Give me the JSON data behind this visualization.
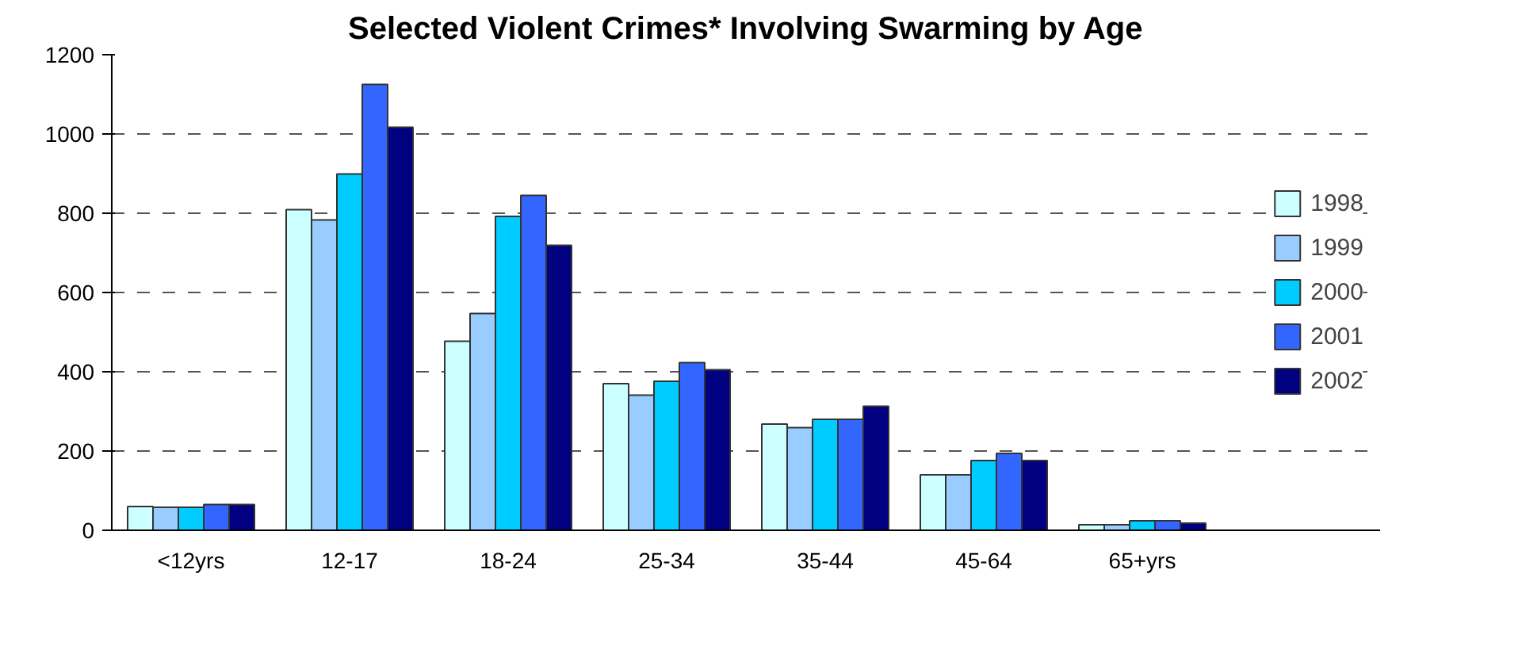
{
  "chart_data": {
    "type": "bar",
    "title": "Selected Violent Crimes* Involving Swarming by Age",
    "categories": [
      "<12yrs",
      "12-17",
      "18-24",
      "25-34",
      "35-44",
      "45-64",
      "65+yrs"
    ],
    "series": [
      {
        "name": "1998",
        "color": "#ccffff",
        "values": [
          60,
          809,
          477,
          370,
          268,
          140,
          14
        ]
      },
      {
        "name": "1999",
        "color": "#99ccff",
        "values": [
          58,
          783,
          547,
          341,
          259,
          140,
          14
        ]
      },
      {
        "name": "2000",
        "color": "#00ccff",
        "values": [
          58,
          899,
          792,
          376,
          280,
          176,
          24
        ]
      },
      {
        "name": "2001",
        "color": "#3366ff",
        "values": [
          65,
          1125,
          845,
          423,
          280,
          194,
          24
        ]
      },
      {
        "name": "2002",
        "color": "#000080",
        "values": [
          65,
          1017,
          719,
          405,
          313,
          176,
          18
        ]
      }
    ],
    "ylim": [
      0,
      1200
    ],
    "yticks": [
      0,
      200,
      400,
      600,
      800,
      1000,
      1200
    ],
    "grid": "y",
    "legend": "right"
  }
}
